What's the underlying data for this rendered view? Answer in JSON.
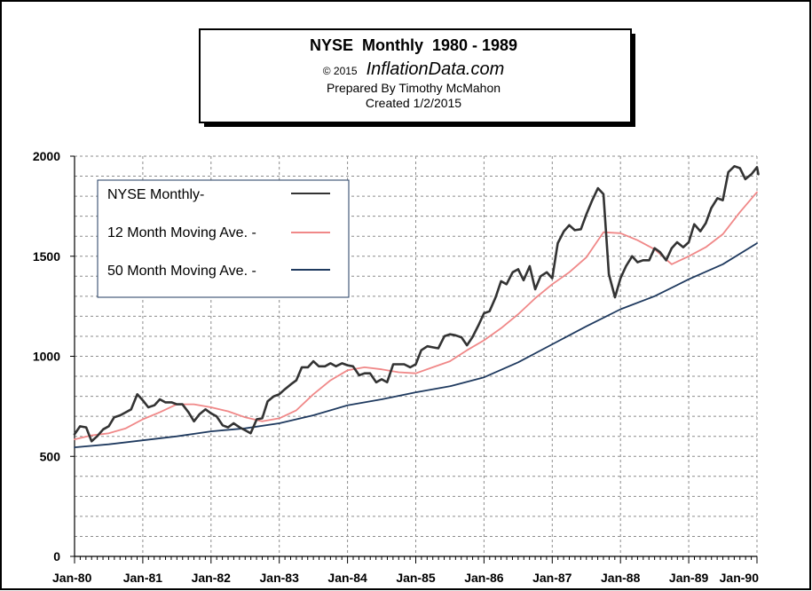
{
  "chart_data": {
    "type": "line",
    "title": "NYSE  Monthly  1980 - 1989",
    "copyright": "© 2015",
    "site": "InflationData.com",
    "prepared_by": "Prepared By Timothy McMahon",
    "created": "Created 1/2/2015",
    "xlabel": "",
    "ylabel": "",
    "x_range": [
      1980.0,
      1990.0
    ],
    "ylim": [
      0,
      2000
    ],
    "y_ticks": [
      0,
      500,
      1000,
      1500,
      2000
    ],
    "y_tick_labels": [
      "0",
      "500",
      "1000",
      "1500",
      "2000"
    ],
    "y_minor_step": 100,
    "x_ticks": [
      1980,
      1981,
      1982,
      1983,
      1984,
      1985,
      1986,
      1987,
      1988,
      1989,
      1990
    ],
    "x_tick_labels": [
      "Jan-80",
      "Jan-81",
      "Jan-82",
      "Jan-83",
      "Jan-84",
      "Jan-85",
      "Jan-86",
      "Jan-87",
      "Jan-88",
      "Jan-89",
      "Jan-90"
    ],
    "grid": true,
    "legend_position": "top-left",
    "series": [
      {
        "name": "NYSE Monthly-",
        "color": "#333333",
        "points": [
          [
            1980.0,
            610
          ],
          [
            1980.08,
            650
          ],
          [
            1980.17,
            645
          ],
          [
            1980.25,
            575
          ],
          [
            1980.33,
            600
          ],
          [
            1980.42,
            635
          ],
          [
            1980.5,
            650
          ],
          [
            1980.58,
            695
          ],
          [
            1980.67,
            705
          ],
          [
            1980.75,
            720
          ],
          [
            1980.83,
            735
          ],
          [
            1980.92,
            810
          ],
          [
            1981.0,
            780
          ],
          [
            1981.08,
            745
          ],
          [
            1981.17,
            755
          ],
          [
            1981.25,
            785
          ],
          [
            1981.33,
            770
          ],
          [
            1981.42,
            770
          ],
          [
            1981.5,
            760
          ],
          [
            1981.58,
            760
          ],
          [
            1981.67,
            720
          ],
          [
            1981.75,
            675
          ],
          [
            1981.83,
            710
          ],
          [
            1981.92,
            735
          ],
          [
            1982.0,
            715
          ],
          [
            1982.08,
            700
          ],
          [
            1982.17,
            655
          ],
          [
            1982.25,
            645
          ],
          [
            1982.33,
            665
          ],
          [
            1982.42,
            645
          ],
          [
            1982.5,
            630
          ],
          [
            1982.58,
            615
          ],
          [
            1982.67,
            685
          ],
          [
            1982.75,
            690
          ],
          [
            1982.83,
            775
          ],
          [
            1982.92,
            800
          ],
          [
            1983.0,
            810
          ],
          [
            1983.08,
            835
          ],
          [
            1983.17,
            860
          ],
          [
            1983.25,
            880
          ],
          [
            1983.33,
            945
          ],
          [
            1983.42,
            945
          ],
          [
            1983.5,
            975
          ],
          [
            1983.58,
            950
          ],
          [
            1983.67,
            950
          ],
          [
            1983.75,
            965
          ],
          [
            1983.83,
            950
          ],
          [
            1983.92,
            965
          ],
          [
            1984.0,
            955
          ],
          [
            1984.08,
            950
          ],
          [
            1984.17,
            905
          ],
          [
            1984.25,
            915
          ],
          [
            1984.33,
            915
          ],
          [
            1984.42,
            870
          ],
          [
            1984.5,
            885
          ],
          [
            1984.58,
            870
          ],
          [
            1984.67,
            960
          ],
          [
            1984.75,
            960
          ],
          [
            1984.83,
            960
          ],
          [
            1984.92,
            945
          ],
          [
            1985.0,
            960
          ],
          [
            1985.08,
            1030
          ],
          [
            1985.17,
            1050
          ],
          [
            1985.25,
            1045
          ],
          [
            1985.33,
            1040
          ],
          [
            1985.42,
            1100
          ],
          [
            1985.5,
            1110
          ],
          [
            1985.58,
            1105
          ],
          [
            1985.67,
            1095
          ],
          [
            1985.75,
            1055
          ],
          [
            1985.83,
            1095
          ],
          [
            1985.92,
            1155
          ],
          [
            1986.0,
            1215
          ],
          [
            1986.08,
            1225
          ],
          [
            1986.17,
            1295
          ],
          [
            1986.25,
            1375
          ],
          [
            1986.33,
            1360
          ],
          [
            1986.42,
            1420
          ],
          [
            1986.5,
            1435
          ],
          [
            1986.58,
            1380
          ],
          [
            1986.67,
            1450
          ],
          [
            1986.75,
            1335
          ],
          [
            1986.83,
            1400
          ],
          [
            1986.92,
            1420
          ],
          [
            1987.0,
            1390
          ],
          [
            1987.08,
            1565
          ],
          [
            1987.17,
            1625
          ],
          [
            1987.25,
            1655
          ],
          [
            1987.33,
            1630
          ],
          [
            1987.42,
            1635
          ],
          [
            1987.5,
            1710
          ],
          [
            1987.58,
            1775
          ],
          [
            1987.67,
            1840
          ],
          [
            1987.75,
            1810
          ],
          [
            1987.83,
            1410
          ],
          [
            1987.92,
            1295
          ],
          [
            1988.0,
            1390
          ],
          [
            1988.08,
            1450
          ],
          [
            1988.17,
            1500
          ],
          [
            1988.25,
            1470
          ],
          [
            1988.33,
            1480
          ],
          [
            1988.42,
            1480
          ],
          [
            1988.5,
            1540
          ],
          [
            1988.58,
            1520
          ],
          [
            1988.67,
            1480
          ],
          [
            1988.75,
            1540
          ],
          [
            1988.83,
            1570
          ],
          [
            1988.92,
            1545
          ],
          [
            1989.0,
            1570
          ],
          [
            1989.08,
            1660
          ],
          [
            1989.17,
            1625
          ],
          [
            1989.25,
            1665
          ],
          [
            1989.33,
            1740
          ],
          [
            1989.42,
            1790
          ],
          [
            1989.5,
            1780
          ],
          [
            1989.58,
            1920
          ],
          [
            1989.67,
            1950
          ],
          [
            1989.75,
            1940
          ],
          [
            1989.83,
            1885
          ],
          [
            1989.92,
            1910
          ],
          [
            1990.0,
            1945
          ],
          [
            1990.02,
            1910
          ]
        ]
      },
      {
        "name": "12 Month Moving Ave. -",
        "color": "#f08888",
        "points": [
          [
            1980.0,
            585
          ],
          [
            1980.25,
            605
          ],
          [
            1980.5,
            615
          ],
          [
            1980.75,
            640
          ],
          [
            1981.0,
            685
          ],
          [
            1981.25,
            720
          ],
          [
            1981.5,
            760
          ],
          [
            1981.75,
            760
          ],
          [
            1982.0,
            745
          ],
          [
            1982.25,
            725
          ],
          [
            1982.5,
            695
          ],
          [
            1982.75,
            675
          ],
          [
            1983.0,
            690
          ],
          [
            1983.25,
            730
          ],
          [
            1983.5,
            810
          ],
          [
            1983.75,
            880
          ],
          [
            1984.0,
            930
          ],
          [
            1984.25,
            945
          ],
          [
            1984.5,
            935
          ],
          [
            1984.75,
            920
          ],
          [
            1985.0,
            915
          ],
          [
            1985.25,
            945
          ],
          [
            1985.5,
            975
          ],
          [
            1985.75,
            1030
          ],
          [
            1986.0,
            1080
          ],
          [
            1986.25,
            1140
          ],
          [
            1986.5,
            1210
          ],
          [
            1986.75,
            1290
          ],
          [
            1987.0,
            1360
          ],
          [
            1987.25,
            1420
          ],
          [
            1987.5,
            1495
          ],
          [
            1987.75,
            1620
          ],
          [
            1988.0,
            1615
          ],
          [
            1988.25,
            1580
          ],
          [
            1988.5,
            1535
          ],
          [
            1988.75,
            1460
          ],
          [
            1989.0,
            1500
          ],
          [
            1989.25,
            1545
          ],
          [
            1989.5,
            1610
          ],
          [
            1989.75,
            1720
          ],
          [
            1990.0,
            1820
          ]
        ]
      },
      {
        "name": "50 Month Moving Ave. -",
        "color": "#1f3a5f",
        "points": [
          [
            1980.0,
            545
          ],
          [
            1980.5,
            560
          ],
          [
            1981.0,
            580
          ],
          [
            1981.5,
            600
          ],
          [
            1982.0,
            625
          ],
          [
            1982.5,
            640
          ],
          [
            1983.0,
            665
          ],
          [
            1983.5,
            705
          ],
          [
            1984.0,
            755
          ],
          [
            1984.5,
            785
          ],
          [
            1985.0,
            820
          ],
          [
            1985.5,
            850
          ],
          [
            1986.0,
            895
          ],
          [
            1986.5,
            970
          ],
          [
            1987.0,
            1060
          ],
          [
            1987.5,
            1150
          ],
          [
            1988.0,
            1235
          ],
          [
            1988.5,
            1300
          ],
          [
            1989.0,
            1385
          ],
          [
            1989.5,
            1460
          ],
          [
            1990.0,
            1565
          ]
        ]
      }
    ]
  }
}
